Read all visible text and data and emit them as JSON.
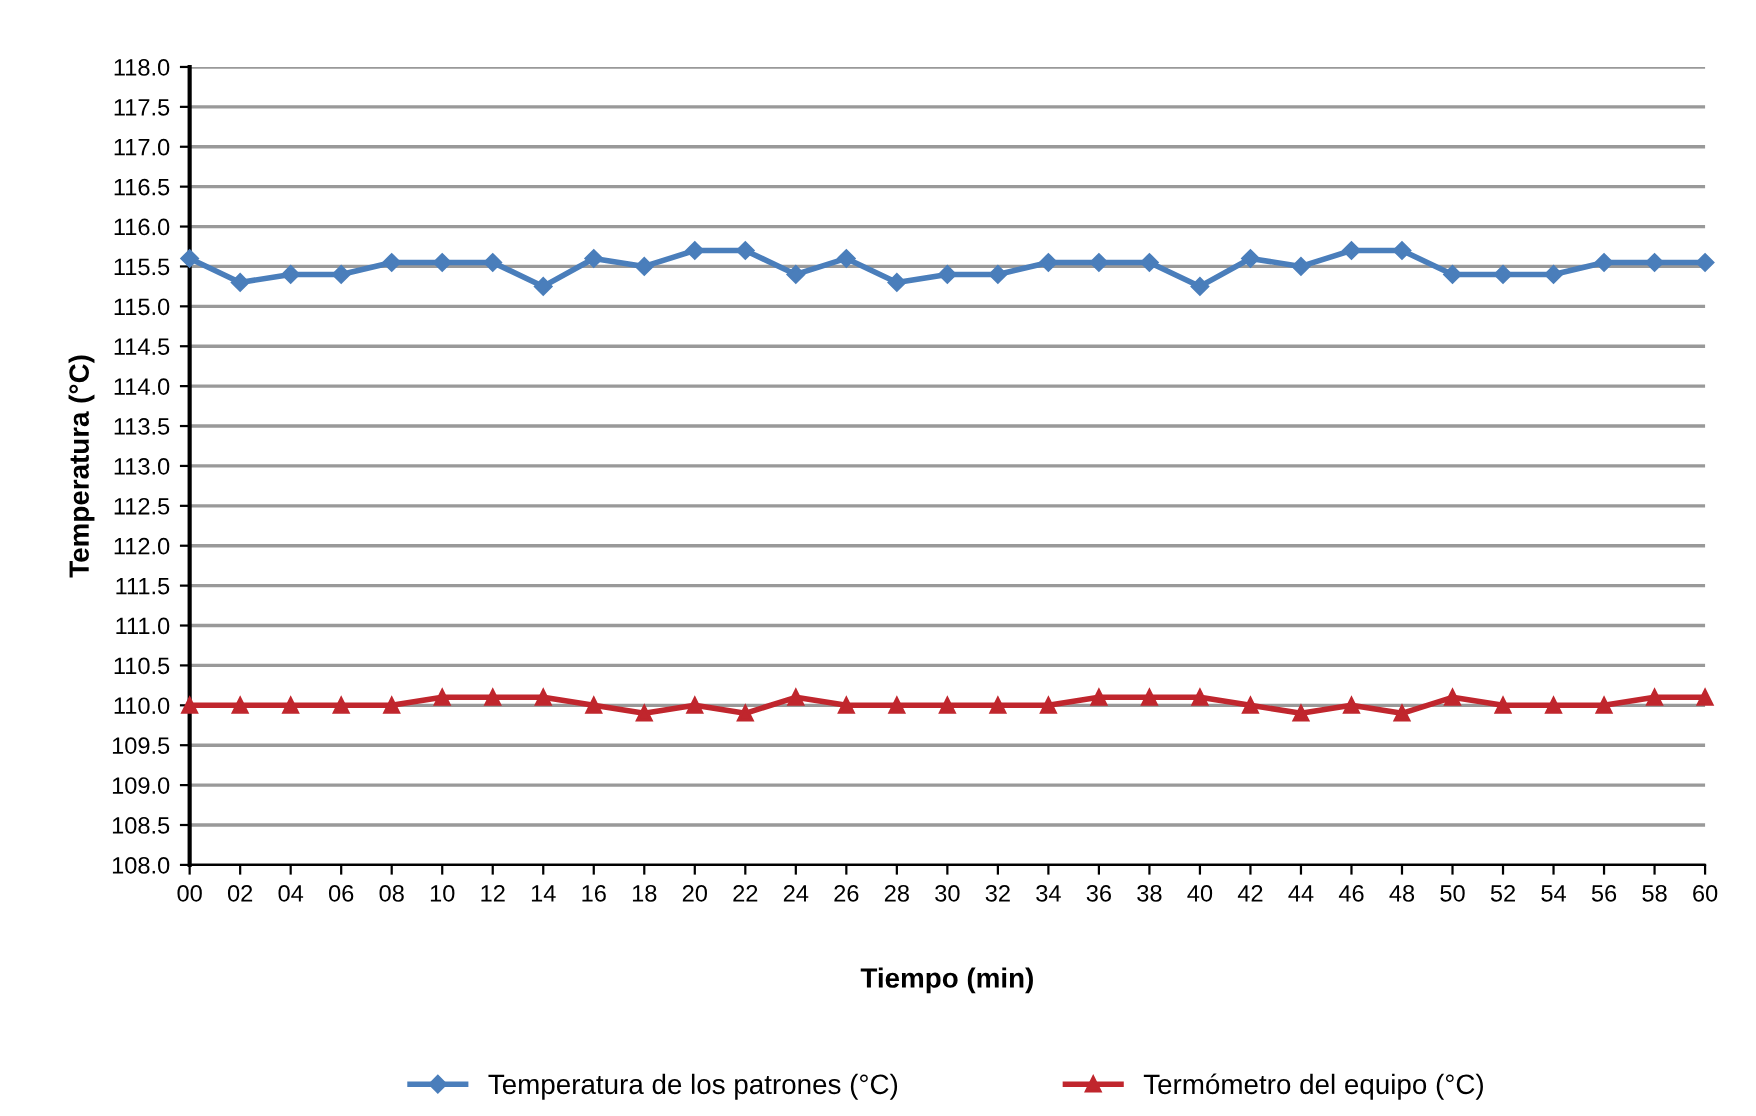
{
  "chart_data": {
    "type": "line",
    "xlabel": "Tiempo (min)",
    "ylabel": "Temperatura (°C)",
    "categories": [
      "00",
      "02",
      "04",
      "06",
      "08",
      "10",
      "12",
      "14",
      "16",
      "18",
      "20",
      "22",
      "24",
      "26",
      "28",
      "30",
      "32",
      "34",
      "36",
      "38",
      "40",
      "42",
      "44",
      "46",
      "48",
      "50",
      "52",
      "54",
      "56",
      "58",
      "60"
    ],
    "series": [
      {
        "name": "Temperatura de los patrones (°C)",
        "color": "#4a7ebb",
        "marker": "diamond",
        "values": [
          115.6,
          115.3,
          115.4,
          115.4,
          115.55,
          115.55,
          115.55,
          115.25,
          115.6,
          115.5,
          115.7,
          115.7,
          115.4,
          115.6,
          115.3,
          115.4,
          115.4,
          115.55,
          115.55,
          115.55,
          115.25,
          115.6,
          115.5,
          115.7,
          115.7,
          115.4,
          115.4,
          115.4,
          115.55,
          115.55,
          115.55
        ]
      },
      {
        "name": "Termómetro del equipo (°C)",
        "color": "#c0262d",
        "marker": "triangle",
        "values": [
          110,
          110,
          110,
          110,
          110,
          110.1,
          110.1,
          110.1,
          110,
          109.9,
          110,
          109.9,
          110.1,
          110,
          110,
          110,
          110,
          110,
          110.1,
          110.1,
          110.1,
          110,
          109.9,
          110,
          109.9,
          110.1,
          110,
          110,
          110,
          110.1,
          110.1
        ]
      }
    ],
    "ylim": [
      108,
      118
    ],
    "yticks": [
      {
        "value": 108,
        "label": "108.0"
      },
      108.5,
      {
        "value": 109,
        "label": "109.0"
      },
      109.5,
      {
        "value": 110,
        "label": "110.0"
      },
      110.5,
      {
        "value": 111,
        "label": "111.0"
      },
      111.5,
      {
        "value": 112,
        "label": "112.0"
      },
      112.5,
      {
        "value": 113,
        "label": "113.0"
      },
      113.5,
      {
        "value": 114,
        "label": "114.0"
      },
      114.5,
      {
        "value": 115,
        "label": "115.0"
      },
      115.5,
      {
        "value": 116,
        "label": "116.0"
      },
      116.5,
      {
        "value": 117,
        "label": "117.0"
      },
      117.5,
      {
        "value": 118,
        "label": "118.0"
      }
    ],
    "grid": "y",
    "legend": "bottom",
    "line_style": "solid"
  }
}
